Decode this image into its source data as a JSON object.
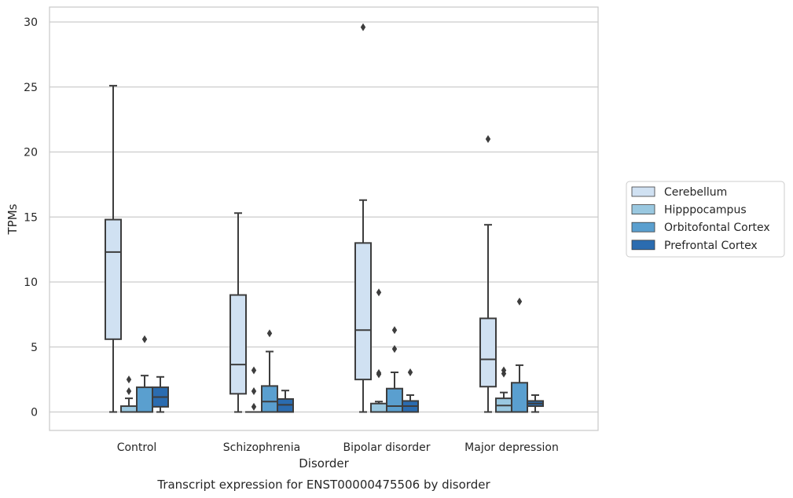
{
  "chart_data": {
    "type": "box",
    "caption": "Transcript expression for ENST00000475506 by disorder",
    "xlabel": "Disorder",
    "ylabel": "TPMs",
    "ylim": [
      -1.4,
      31.1
    ],
    "yticks": [
      0,
      5,
      10,
      15,
      20,
      25,
      30
    ],
    "grid": "horizontal",
    "legend_placement": "right",
    "categories": [
      "Control",
      "Schizophrenia",
      "Bipolar disorder",
      "Major depression"
    ],
    "series": [
      {
        "name": "Cerebellum",
        "color": "#d0e1f2",
        "boxes": [
          {
            "whisker_low": 0,
            "q1": 5.6,
            "median": 12.3,
            "q3": 14.8,
            "whisker_high": 25.1,
            "outliers": []
          },
          {
            "whisker_low": 0,
            "q1": 1.4,
            "median": 3.65,
            "q3": 9.0,
            "whisker_high": 15.3,
            "outliers": []
          },
          {
            "whisker_low": 0,
            "q1": 2.5,
            "median": 6.3,
            "q3": 13.0,
            "whisker_high": 16.3,
            "outliers": [
              29.6
            ]
          },
          {
            "whisker_low": 0,
            "q1": 1.95,
            "median": 4.05,
            "q3": 7.2,
            "whisker_high": 14.4,
            "outliers": [
              21.0
            ]
          }
        ]
      },
      {
        "name": "Hipppocampus",
        "color": "#9ac8e0",
        "boxes": [
          {
            "whisker_low": 0,
            "q1": 0,
            "median": 0,
            "q3": 0.45,
            "whisker_high": 1.05,
            "outliers": [
              1.6,
              2.5
            ]
          },
          {
            "whisker_low": 0,
            "q1": 0,
            "median": 0,
            "q3": 0,
            "whisker_high": 0,
            "outliers": [
              0.4,
              1.6,
              3.2
            ]
          },
          {
            "whisker_low": 0,
            "q1": 0,
            "median": 0,
            "q3": 0.65,
            "whisker_high": 0.8,
            "outliers": [
              2.9,
              3.0,
              9.2
            ]
          },
          {
            "whisker_low": 0,
            "q1": 0,
            "median": 0.5,
            "q3": 1.05,
            "whisker_high": 1.5,
            "outliers": [
              2.95,
              3.2
            ]
          }
        ]
      },
      {
        "name": "Orbitofontal Cortex",
        "color": "#5a9fcf",
        "boxes": [
          {
            "whisker_low": 0,
            "q1": 0,
            "median": 0,
            "q3": 1.9,
            "whisker_high": 2.8,
            "outliers": [
              5.6
            ]
          },
          {
            "whisker_low": 0,
            "q1": 0,
            "median": 0.8,
            "q3": 2.0,
            "whisker_high": 4.65,
            "outliers": [
              6.05
            ]
          },
          {
            "whisker_low": 0,
            "q1": 0,
            "median": 0.45,
            "q3": 1.8,
            "whisker_high": 3.05,
            "outliers": [
              4.85,
              6.3
            ]
          },
          {
            "whisker_low": 0,
            "q1": 0,
            "median": 0,
            "q3": 2.25,
            "whisker_high": 3.6,
            "outliers": [
              8.5
            ]
          }
        ]
      },
      {
        "name": "Prefrontal Cortex",
        "color": "#2b6cb0",
        "boxes": [
          {
            "whisker_low": 0,
            "q1": 0.4,
            "median": 1.15,
            "q3": 1.9,
            "whisker_high": 2.7,
            "outliers": []
          },
          {
            "whisker_low": 0,
            "q1": 0,
            "median": 0.55,
            "q3": 1.0,
            "whisker_high": 1.65,
            "outliers": []
          },
          {
            "whisker_low": 0,
            "q1": 0,
            "median": 0.45,
            "q3": 0.85,
            "whisker_high": 1.3,
            "outliers": [
              3.05
            ]
          },
          {
            "whisker_low": 0,
            "q1": 0.45,
            "median": 0.65,
            "q3": 0.85,
            "whisker_high": 1.3,
            "outliers": []
          }
        ]
      }
    ]
  }
}
